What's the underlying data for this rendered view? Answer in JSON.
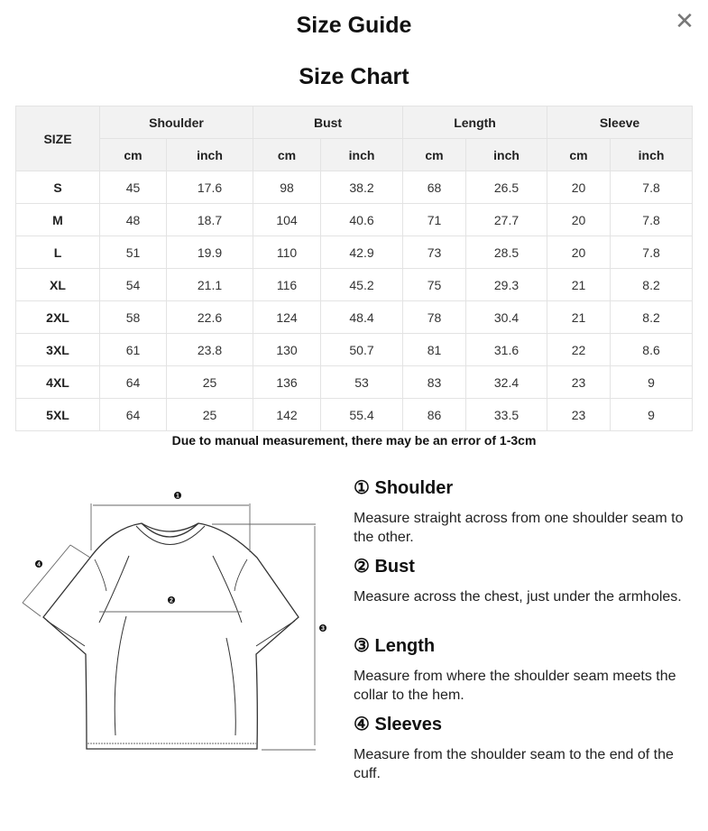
{
  "header": {
    "title": "Size Guide",
    "close_icon": "close-icon"
  },
  "chart_title": "Size Chart",
  "table": {
    "size_header": "SIZE",
    "groups": [
      "Shoulder",
      "Bust",
      "Length",
      "Sleeve"
    ],
    "units": [
      "cm",
      "inch",
      "cm",
      "inch",
      "cm",
      "inch",
      "cm",
      "inch"
    ],
    "rows": [
      [
        "S",
        "45",
        "17.6",
        "98",
        "38.2",
        "68",
        "26.5",
        "20",
        "7.8"
      ],
      [
        "M",
        "48",
        "18.7",
        "104",
        "40.6",
        "71",
        "27.7",
        "20",
        "7.8"
      ],
      [
        "L",
        "51",
        "19.9",
        "110",
        "42.9",
        "73",
        "28.5",
        "20",
        "7.8"
      ],
      [
        "XL",
        "54",
        "21.1",
        "116",
        "45.2",
        "75",
        "29.3",
        "21",
        "8.2"
      ],
      [
        "2XL",
        "58",
        "22.6",
        "124",
        "48.4",
        "78",
        "30.4",
        "21",
        "8.2"
      ],
      [
        "3XL",
        "61",
        "23.8",
        "130",
        "50.7",
        "81",
        "31.6",
        "22",
        "8.6"
      ],
      [
        "4XL",
        "64",
        "25",
        "136",
        "53",
        "83",
        "32.4",
        "23",
        "9"
      ],
      [
        "5XL",
        "64",
        "25",
        "142",
        "55.4",
        "86",
        "33.5",
        "23",
        "9"
      ]
    ]
  },
  "note": "Due to manual measurement, there may be an error of 1-3cm",
  "diagram": {
    "markers": [
      "1",
      "2",
      "3",
      "4"
    ]
  },
  "guide": [
    {
      "title": "① Shoulder",
      "text": "Measure straight across from one shoulder seam to the other."
    },
    {
      "title": "② Bust",
      "text": "Measure across the chest, just under the armholes."
    },
    {
      "title": "③ Length",
      "text": "Measure from where the shoulder seam meets the collar to the hem."
    },
    {
      "title": "④ Sleeves",
      "text": "Measure from the shoulder seam to the end of the cuff."
    }
  ]
}
